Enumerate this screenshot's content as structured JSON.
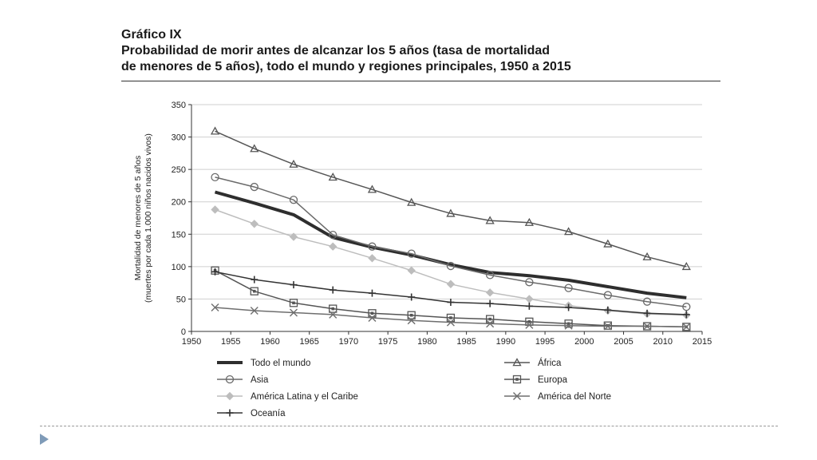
{
  "figure": {
    "label": "Gráfico IX",
    "title_lines": [
      "Probabilidad de morir antes de alcanzar los 5 años (tasa de mortalidad",
      "de menores de 5 años), todo el mundo y regiones principales, 1950 a 2015"
    ]
  },
  "chart_data": {
    "type": "line",
    "ylabel_lines": [
      "Mortalidad de menores de 5 años",
      "(muertes por cada 1.000 niños nacidos vivos)"
    ],
    "xlim": [
      1950,
      2015
    ],
    "ylim": [
      0,
      350
    ],
    "xticks": [
      "1950",
      "1955",
      "1960",
      "1965",
      "1970",
      "1975",
      "1980",
      "1985",
      "1990",
      "1995",
      "2000",
      "2005",
      "2010",
      "2015"
    ],
    "yticks": [
      "0",
      "50",
      "100",
      "150",
      "200",
      "250",
      "300",
      "350"
    ],
    "grid": "horizontal",
    "legend_position": "bottom",
    "x": [
      1953,
      1958,
      1963,
      1968,
      1973,
      1978,
      1983,
      1988,
      1993,
      1998,
      2003,
      2008,
      2013
    ],
    "series": [
      {
        "name": "Todo el mundo",
        "marker": "none",
        "color": "#2e2e2e",
        "values": [
          215,
          198,
          180,
          145,
          130,
          118,
          103,
          91,
          86,
          79,
          69,
          59,
          52
        ]
      },
      {
        "name": "África",
        "marker": "triangle",
        "color": "#555555",
        "values": [
          309,
          282,
          258,
          238,
          219,
          199,
          182,
          171,
          168,
          154,
          135,
          115,
          100
        ]
      },
      {
        "name": "Asia",
        "marker": "circle",
        "color": "#6a6a6a",
        "values": [
          238,
          223,
          203,
          149,
          131,
          120,
          101,
          87,
          76,
          67,
          56,
          46,
          38
        ]
      },
      {
        "name": "Europa",
        "marker": "square",
        "color": "#555555",
        "values": [
          94,
          62,
          44,
          35,
          28,
          25,
          21,
          19,
          15,
          12,
          9,
          8,
          7
        ]
      },
      {
        "name": "América Latina y el Caribe",
        "marker": "diamond",
        "color": "#bdbdbd",
        "values": [
          188,
          166,
          146,
          131,
          113,
          94,
          73,
          60,
          50,
          40,
          32,
          27,
          25
        ]
      },
      {
        "name": "América del Norte",
        "marker": "x",
        "color": "#6e6e6e",
        "values": [
          37,
          32,
          29,
          26,
          21,
          17,
          14,
          12,
          10,
          9,
          8,
          8,
          7
        ]
      },
      {
        "name": "Oceanía",
        "marker": "plus",
        "color": "#333333",
        "values": [
          92,
          80,
          72,
          64,
          59,
          53,
          45,
          43,
          39,
          37,
          33,
          28,
          26
        ]
      }
    ]
  }
}
